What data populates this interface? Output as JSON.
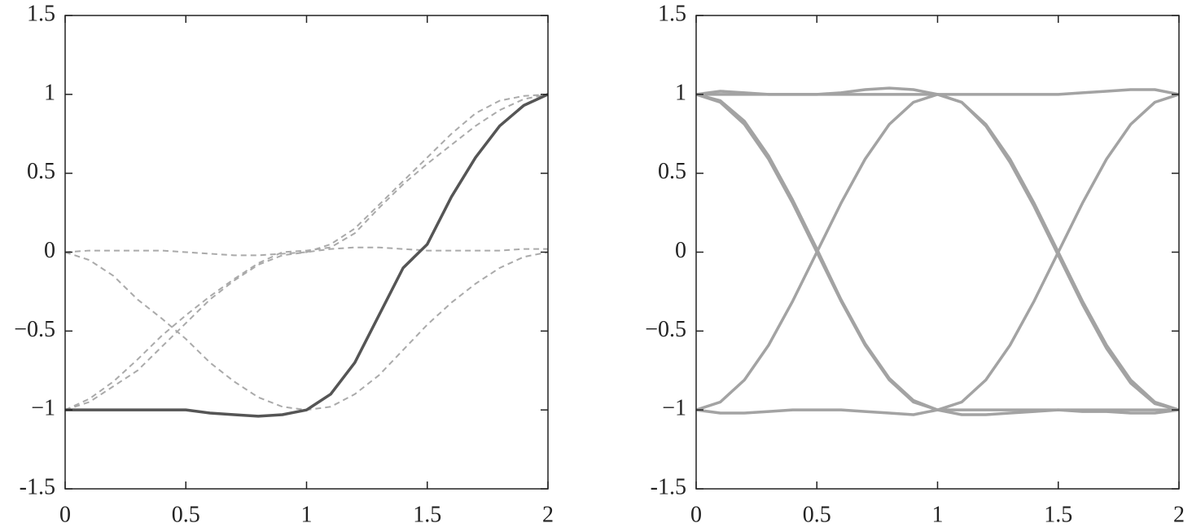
{
  "chart_data": [
    {
      "type": "line",
      "x": [
        0,
        0.1,
        0.2,
        0.3,
        0.4,
        0.5,
        0.6,
        0.7,
        0.8,
        0.9,
        1,
        1.1,
        1.2,
        1.3,
        1.4,
        1.5,
        1.6,
        1.7,
        1.8,
        1.9,
        2
      ],
      "xlim": [
        0,
        2
      ],
      "ylim": [
        -1.5,
        1.5
      ],
      "xticks": [
        0,
        0.5,
        1,
        1.5,
        2
      ],
      "yticks": [
        1.5,
        1,
        0.5,
        0,
        {
          "value": -0.5,
          "label": "−0.5"
        },
        {
          "value": -1,
          "label": "−1"
        },
        -1.5
      ],
      "series": [
        {
          "color": "#aaaaaa",
          "dashed": true,
          "values": [
            -1,
            -0.95,
            -0.85,
            -0.75,
            -0.6,
            -0.45,
            -0.3,
            -0.18,
            -0.08,
            -0.02,
            0,
            0.05,
            0.15,
            0.3,
            0.45,
            0.6,
            0.75,
            0.88,
            0.96,
            0.99,
            1
          ]
        },
        {
          "color": "#aaaaaa",
          "dashed": true,
          "values": [
            -1,
            -0.93,
            -0.82,
            -0.68,
            -0.53,
            -0.4,
            -0.28,
            -0.17,
            -0.07,
            0,
            0.01,
            0.03,
            0.12,
            0.28,
            0.43,
            0.56,
            0.68,
            0.8,
            0.9,
            0.97,
            1
          ]
        },
        {
          "color": "#aaaaaa",
          "dashed": true,
          "values": [
            0,
            -0.05,
            -0.15,
            -0.3,
            -0.42,
            -0.55,
            -0.7,
            -0.82,
            -0.92,
            -0.98,
            -1,
            -0.98,
            -0.9,
            -0.78,
            -0.62,
            -0.46,
            -0.32,
            -0.2,
            -0.1,
            -0.03,
            0
          ]
        },
        {
          "color": "#aaaaaa",
          "dashed": true,
          "values": [
            0,
            0.01,
            0.01,
            0.01,
            0.01,
            0,
            -0.01,
            -0.02,
            -0.02,
            -0.01,
            0,
            0.02,
            0.03,
            0.03,
            0.02,
            0.01,
            0.01,
            0.01,
            0.01,
            0.02,
            0.02
          ]
        },
        {
          "color": "#555555",
          "dashed": false,
          "values": [
            -1,
            -1,
            -1,
            -1,
            -1,
            -1,
            -1.02,
            -1.03,
            -1.04,
            -1.03,
            -1,
            -0.9,
            -0.7,
            -0.4,
            -0.1,
            0.05,
            0.35,
            0.6,
            0.8,
            0.93,
            1
          ]
        }
      ]
    },
    {
      "type": "line",
      "x": [
        0,
        0.1,
        0.2,
        0.3,
        0.4,
        0.5,
        0.6,
        0.7,
        0.8,
        0.9,
        1,
        1.1,
        1.2,
        1.3,
        1.4,
        1.5,
        1.6,
        1.7,
        1.8,
        1.9,
        2
      ],
      "xlim": [
        0,
        2
      ],
      "ylim": [
        -1.5,
        1.5
      ],
      "xticks": [
        0,
        0.5,
        1,
        1.5,
        2
      ],
      "yticks": [
        1.5,
        1,
        0.5,
        0,
        {
          "value": -0.5,
          "label": "−0.5"
        },
        {
          "value": -1,
          "label": "−1"
        },
        -1.5
      ],
      "series": [
        {
          "color": "#a3a3a3",
          "dashed": false,
          "values": [
            1,
            0.95,
            0.81,
            0.59,
            0.31,
            0,
            -0.31,
            -0.59,
            -0.81,
            -0.95,
            -1,
            -0.95,
            -0.81,
            -0.59,
            -0.31,
            0,
            0.31,
            0.59,
            0.81,
            0.95,
            1
          ]
        },
        {
          "color": "#a3a3a3",
          "dashed": false,
          "values": [
            -1,
            -0.95,
            -0.81,
            -0.59,
            -0.31,
            0,
            0.31,
            0.59,
            0.81,
            0.95,
            1,
            0.95,
            0.81,
            0.59,
            0.31,
            0,
            -0.31,
            -0.59,
            -0.81,
            -0.95,
            -1
          ]
        },
        {
          "color": "#a3a3a3",
          "dashed": false,
          "values": [
            1,
            1.02,
            1.01,
            1,
            1,
            1,
            1.01,
            1.03,
            1.04,
            1.03,
            1,
            1,
            1,
            1,
            1,
            1,
            1.01,
            1.02,
            1.03,
            1.03,
            1
          ]
        },
        {
          "color": "#a3a3a3",
          "dashed": false,
          "values": [
            -1,
            -1.02,
            -1.02,
            -1.01,
            -1,
            -1,
            -1,
            -1.01,
            -1.02,
            -1.03,
            -1,
            -1.03,
            -1.03,
            -1.02,
            -1.01,
            -1,
            -1.01,
            -1.01,
            -1.02,
            -1.02,
            -1
          ]
        },
        {
          "color": "#a3a3a3",
          "dashed": false,
          "values": [
            1,
            0.96,
            0.83,
            0.61,
            0.33,
            0.02,
            -0.3,
            -0.58,
            -0.8,
            -0.94,
            -1,
            -1,
            -1,
            -1,
            -1,
            -1,
            -1,
            -1,
            -1,
            -1,
            -1
          ]
        },
        {
          "color": "#a3a3a3",
          "dashed": false,
          "values": [
            1,
            1,
            1,
            1,
            1,
            1,
            1,
            1,
            1,
            1,
            1,
            0.95,
            0.8,
            0.57,
            0.29,
            -0.02,
            -0.33,
            -0.61,
            -0.83,
            -0.96,
            -1
          ]
        }
      ]
    }
  ]
}
